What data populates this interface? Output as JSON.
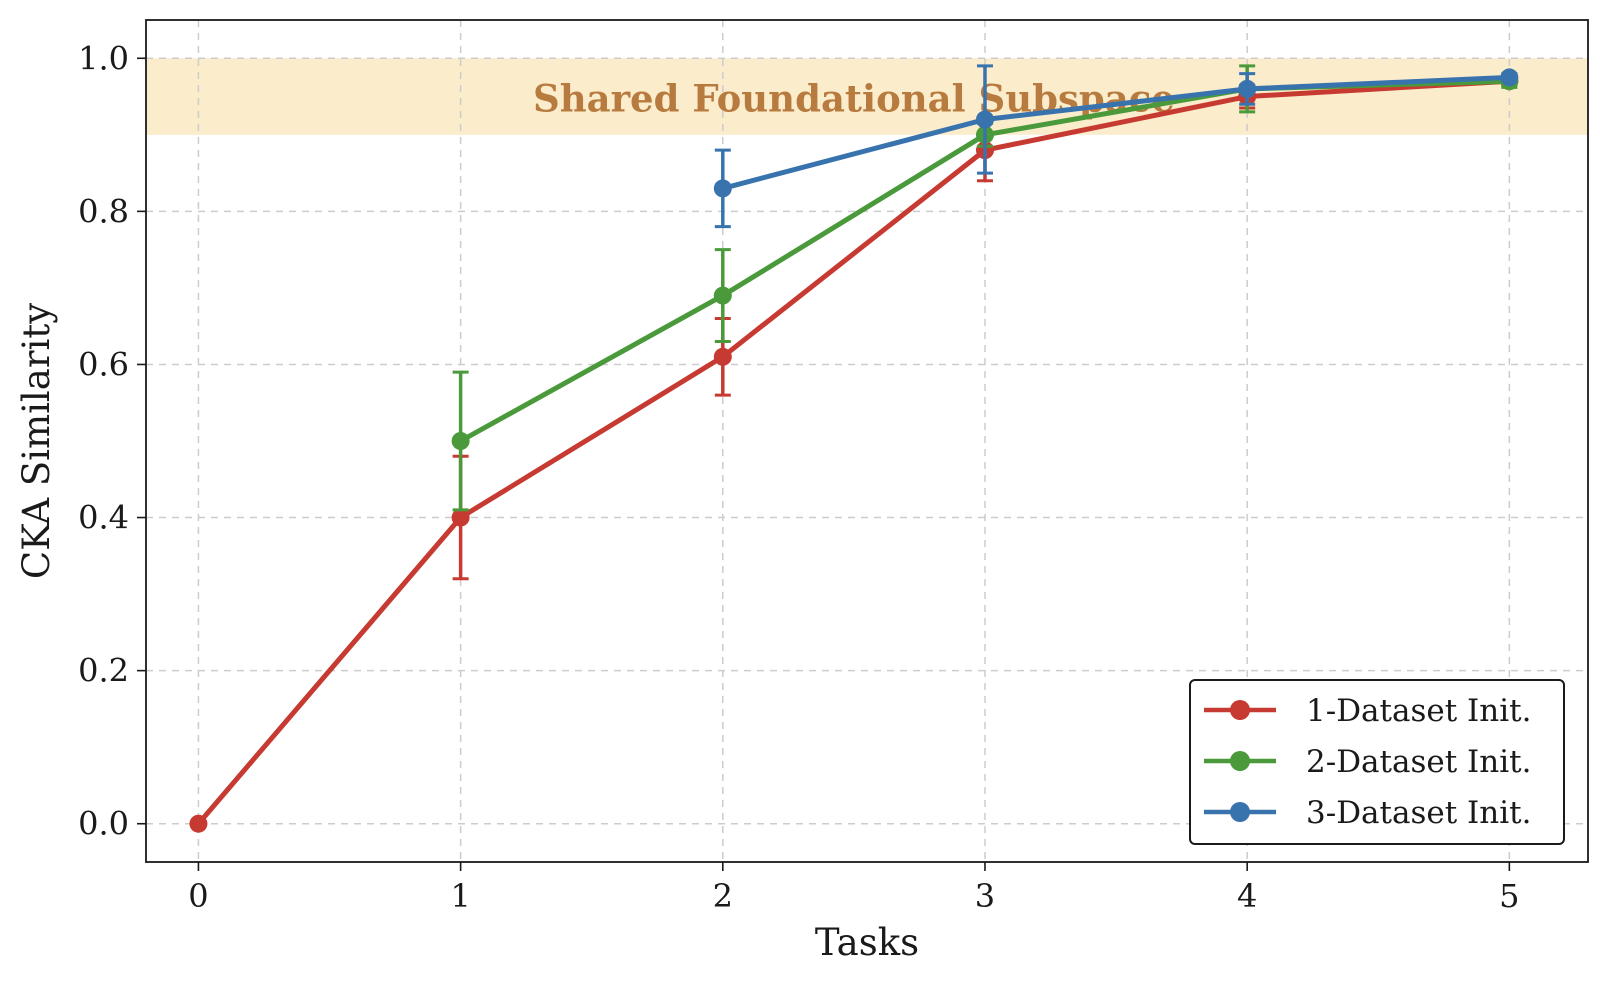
{
  "chart_data": {
    "type": "line",
    "xlabel": "Tasks",
    "ylabel": "CKA Similarity",
    "xlim": [
      -0.2,
      5.3
    ],
    "ylim": [
      -0.05,
      1.05
    ],
    "x_ticks": [
      "0",
      "1",
      "2",
      "3",
      "4",
      "5"
    ],
    "y_ticks": [
      "0.0",
      "0.2",
      "0.4",
      "0.6",
      "0.8",
      "1.0"
    ],
    "grid": true,
    "legend_position": "lower-right",
    "band": {
      "label": "Shared Foundational Subspace",
      "y_range": [
        0.9,
        1.0
      ],
      "fill_color": "#fbeccb",
      "text_color": "#b87b3f"
    },
    "series": [
      {
        "name": "1-Dataset Init.",
        "color": "#c73a32",
        "x": [
          0,
          1,
          2,
          3,
          4,
          5
        ],
        "values": [
          0.0,
          0.4,
          0.61,
          0.88,
          0.95,
          0.97
        ],
        "errors": [
          0.0,
          0.08,
          0.05,
          0.04,
          0.015,
          0.005
        ]
      },
      {
        "name": "2-Dataset Init.",
        "color": "#4a9a3b",
        "x": [
          1,
          2,
          3,
          4,
          5
        ],
        "values": [
          0.5,
          0.69,
          0.9,
          0.96,
          0.97
        ],
        "errors": [
          0.09,
          0.06,
          0.015,
          0.03,
          0.008
        ]
      },
      {
        "name": "3-Dataset Init.",
        "color": "#3873ae",
        "x": [
          2,
          3,
          4,
          5
        ],
        "values": [
          0.83,
          0.92,
          0.96,
          0.975
        ],
        "errors": [
          0.05,
          0.07,
          0.02,
          0.005
        ]
      }
    ]
  }
}
